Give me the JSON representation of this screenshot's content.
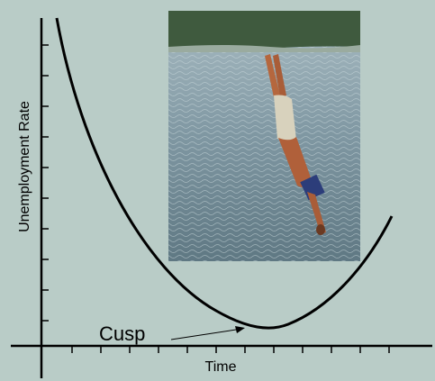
{
  "chart_data": {
    "type": "line",
    "y_label": "Unemployment Rate",
    "x_label": "Time",
    "annotation": "Cusp"
  }
}
